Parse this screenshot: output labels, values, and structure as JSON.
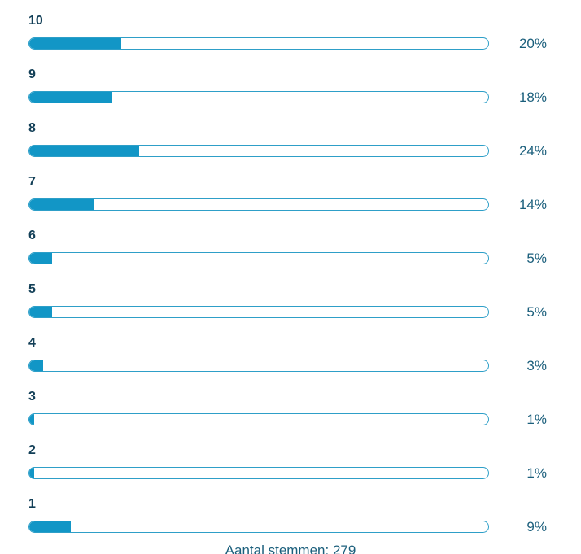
{
  "chart_data": {
    "type": "bar",
    "orientation": "horizontal",
    "title": "",
    "categories": [
      "10",
      "9",
      "8",
      "7",
      "6",
      "5",
      "4",
      "3",
      "2",
      "1"
    ],
    "values": [
      20,
      18,
      24,
      14,
      5,
      5,
      3,
      1,
      1,
      9
    ],
    "unit": "%",
    "value_labels": [
      "20%",
      "18%",
      "24%",
      "14%",
      "5%",
      "5%",
      "3%",
      "1%",
      "1%",
      "9%"
    ],
    "xlim": [
      0,
      100
    ],
    "grid": false,
    "legend": false,
    "caption": "Aantal stemmen: 279",
    "total_votes_label": "Aantal stemmen",
    "total_votes": 279,
    "colors": {
      "bar_fill": "#1296C6",
      "bar_border": "#2E9FC8",
      "category_label": "#123F57",
      "value_label": "#1B5F7C",
      "background": "#FFFFFF"
    }
  }
}
